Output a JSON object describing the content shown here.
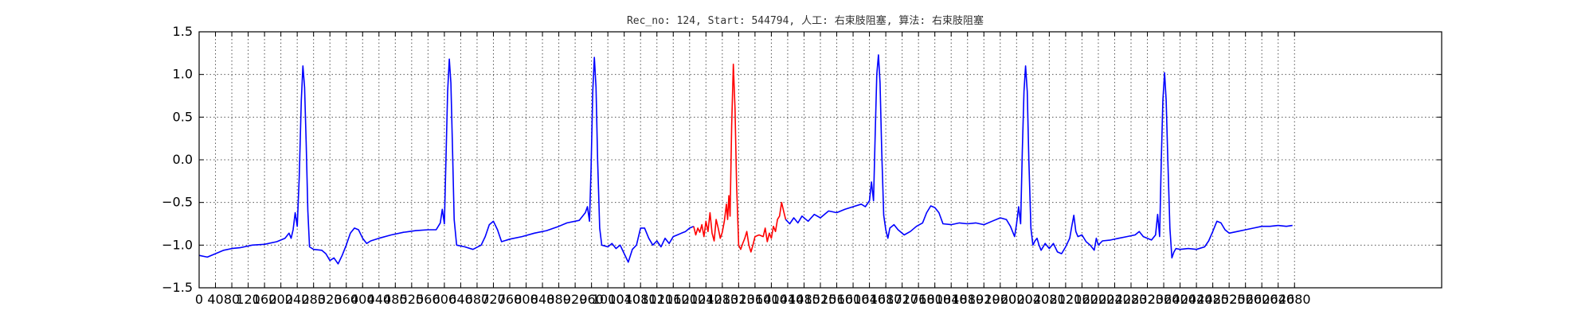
{
  "chart_data": {
    "type": "line",
    "title": "Rec_no: 124, Start: 544794, 人工: 右束肢阻塞, 算法: 右束肢阻塞",
    "xlabel": "",
    "ylabel": "",
    "xlim": [
      0,
      3040
    ],
    "ylim": [
      -1.5,
      1.5
    ],
    "grid": true,
    "y_ticks": [
      "1.5",
      "1.0",
      "0.5",
      "0.0",
      "−0.5",
      "−1.0",
      "−1.5"
    ],
    "y_tick_values": [
      1.5,
      1.0,
      0.5,
      0.0,
      -0.5,
      -1.0,
      -1.5
    ],
    "x_tick_step": 40,
    "x_tick_max": 2680,
    "series": [
      {
        "name": "ecg-blue-before",
        "color": "#0000ff",
        "points": [
          [
            0,
            -1.12
          ],
          [
            20,
            -1.14
          ],
          [
            40,
            -1.1
          ],
          [
            60,
            -1.06
          ],
          [
            80,
            -1.04
          ],
          [
            100,
            -1.03
          ],
          [
            130,
            -1.0
          ],
          [
            160,
            -0.99
          ],
          [
            190,
            -0.96
          ],
          [
            210,
            -0.92
          ],
          [
            220,
            -0.86
          ],
          [
            225,
            -0.92
          ],
          [
            230,
            -0.82
          ],
          [
            235,
            -0.62
          ],
          [
            240,
            -0.78
          ],
          [
            245,
            -0.2
          ],
          [
            250,
            0.7
          ],
          [
            254,
            1.1
          ],
          [
            258,
            0.85
          ],
          [
            262,
            0.2
          ],
          [
            266,
            -0.6
          ],
          [
            270,
            -1.02
          ],
          [
            280,
            -1.05
          ],
          [
            300,
            -1.06
          ],
          [
            310,
            -1.1
          ],
          [
            320,
            -1.18
          ],
          [
            330,
            -1.15
          ],
          [
            340,
            -1.22
          ],
          [
            350,
            -1.12
          ],
          [
            360,
            -1.0
          ],
          [
            370,
            -0.86
          ],
          [
            380,
            -0.8
          ],
          [
            390,
            -0.82
          ],
          [
            400,
            -0.92
          ],
          [
            410,
            -0.98
          ],
          [
            420,
            -0.95
          ],
          [
            440,
            -0.92
          ],
          [
            470,
            -0.88
          ],
          [
            500,
            -0.85
          ],
          [
            530,
            -0.83
          ],
          [
            560,
            -0.82
          ],
          [
            580,
            -0.82
          ],
          [
            590,
            -0.74
          ],
          [
            595,
            -0.58
          ],
          [
            600,
            -0.75
          ],
          [
            604,
            0.0
          ],
          [
            608,
            0.8
          ],
          [
            612,
            1.18
          ],
          [
            616,
            0.9
          ],
          [
            620,
            0.1
          ],
          [
            624,
            -0.7
          ],
          [
            630,
            -1.0
          ],
          [
            650,
            -1.02
          ],
          [
            670,
            -1.05
          ],
          [
            690,
            -1.0
          ],
          [
            700,
            -0.9
          ],
          [
            710,
            -0.76
          ],
          [
            720,
            -0.72
          ],
          [
            730,
            -0.82
          ],
          [
            740,
            -0.96
          ],
          [
            760,
            -0.93
          ],
          [
            790,
            -0.9
          ],
          [
            820,
            -0.86
          ],
          [
            850,
            -0.83
          ],
          [
            880,
            -0.78
          ],
          [
            900,
            -0.74
          ],
          [
            930,
            -0.71
          ],
          [
            945,
            -0.62
          ],
          [
            950,
            -0.55
          ],
          [
            955,
            -0.72
          ],
          [
            959,
            -0.1
          ],
          [
            963,
            0.8
          ],
          [
            967,
            1.2
          ],
          [
            971,
            0.85
          ],
          [
            975,
            0.0
          ],
          [
            980,
            -0.8
          ],
          [
            985,
            -1.0
          ],
          [
            1000,
            -1.02
          ],
          [
            1010,
            -0.98
          ],
          [
            1020,
            -1.04
          ],
          [
            1030,
            -1.0
          ],
          [
            1040,
            -1.1
          ],
          [
            1050,
            -1.2
          ],
          [
            1060,
            -1.05
          ],
          [
            1070,
            -1.0
          ],
          [
            1080,
            -0.8
          ],
          [
            1090,
            -0.8
          ],
          [
            1100,
            -0.92
          ],
          [
            1110,
            -1.0
          ],
          [
            1120,
            -0.95
          ],
          [
            1130,
            -1.02
          ],
          [
            1140,
            -0.92
          ],
          [
            1150,
            -0.98
          ],
          [
            1160,
            -0.9
          ],
          [
            1170,
            -0.88
          ],
          [
            1180,
            -0.86
          ],
          [
            1190,
            -0.84
          ],
          [
            1200,
            -0.8
          ],
          [
            1210,
            -0.78
          ]
        ]
      },
      {
        "name": "ecg-red-highlight",
        "color": "#ff0000",
        "points": [
          [
            1210,
            -0.78
          ],
          [
            1215,
            -0.88
          ],
          [
            1220,
            -0.8
          ],
          [
            1225,
            -0.85
          ],
          [
            1230,
            -0.76
          ],
          [
            1235,
            -0.9
          ],
          [
            1240,
            -0.72
          ],
          [
            1245,
            -0.84
          ],
          [
            1250,
            -0.62
          ],
          [
            1255,
            -0.86
          ],
          [
            1260,
            -0.95
          ],
          [
            1265,
            -0.7
          ],
          [
            1270,
            -0.8
          ],
          [
            1275,
            -0.92
          ],
          [
            1280,
            -0.85
          ],
          [
            1285,
            -0.72
          ],
          [
            1290,
            -0.52
          ],
          [
            1293,
            -0.7
          ],
          [
            1296,
            -0.42
          ],
          [
            1299,
            -0.66
          ],
          [
            1303,
            0.4
          ],
          [
            1307,
            1.12
          ],
          [
            1311,
            0.6
          ],
          [
            1315,
            -0.3
          ],
          [
            1320,
            -1.0
          ],
          [
            1325,
            -1.05
          ],
          [
            1330,
            -0.98
          ],
          [
            1335,
            -0.92
          ],
          [
            1340,
            -0.84
          ],
          [
            1345,
            -1.0
          ],
          [
            1350,
            -1.08
          ],
          [
            1355,
            -1.0
          ],
          [
            1360,
            -0.9
          ],
          [
            1370,
            -0.88
          ],
          [
            1380,
            -0.9
          ],
          [
            1385,
            -0.8
          ],
          [
            1390,
            -0.96
          ],
          [
            1395,
            -0.86
          ],
          [
            1400,
            -0.92
          ],
          [
            1405,
            -0.78
          ],
          [
            1410,
            -0.84
          ],
          [
            1415,
            -0.7
          ],
          [
            1420,
            -0.66
          ],
          [
            1425,
            -0.5
          ],
          [
            1430,
            -0.6
          ],
          [
            1435,
            -0.7
          ]
        ]
      },
      {
        "name": "ecg-blue-after",
        "color": "#0000ff",
        "points": [
          [
            1435,
            -0.7
          ],
          [
            1445,
            -0.75
          ],
          [
            1455,
            -0.68
          ],
          [
            1465,
            -0.74
          ],
          [
            1475,
            -0.66
          ],
          [
            1490,
            -0.72
          ],
          [
            1505,
            -0.64
          ],
          [
            1520,
            -0.68
          ],
          [
            1540,
            -0.6
          ],
          [
            1560,
            -0.62
          ],
          [
            1580,
            -0.58
          ],
          [
            1600,
            -0.55
          ],
          [
            1620,
            -0.52
          ],
          [
            1630,
            -0.55
          ],
          [
            1640,
            -0.48
          ],
          [
            1645,
            -0.26
          ],
          [
            1650,
            -0.48
          ],
          [
            1654,
            0.3
          ],
          [
            1658,
            1.0
          ],
          [
            1662,
            1.23
          ],
          [
            1666,
            0.9
          ],
          [
            1670,
            0.1
          ],
          [
            1675,
            -0.65
          ],
          [
            1680,
            -0.82
          ],
          [
            1685,
            -0.92
          ],
          [
            1690,
            -0.8
          ],
          [
            1700,
            -0.76
          ],
          [
            1710,
            -0.82
          ],
          [
            1725,
            -0.88
          ],
          [
            1740,
            -0.84
          ],
          [
            1755,
            -0.78
          ],
          [
            1770,
            -0.74
          ],
          [
            1780,
            -0.62
          ],
          [
            1790,
            -0.54
          ],
          [
            1800,
            -0.56
          ],
          [
            1810,
            -0.62
          ],
          [
            1820,
            -0.75
          ],
          [
            1840,
            -0.76
          ],
          [
            1860,
            -0.74
          ],
          [
            1880,
            -0.75
          ],
          [
            1900,
            -0.74
          ],
          [
            1920,
            -0.76
          ],
          [
            1940,
            -0.72
          ],
          [
            1960,
            -0.68
          ],
          [
            1975,
            -0.7
          ],
          [
            1985,
            -0.78
          ],
          [
            1995,
            -0.9
          ],
          [
            2000,
            -0.75
          ],
          [
            2005,
            -0.55
          ],
          [
            2010,
            -0.75
          ],
          [
            2014,
            0.1
          ],
          [
            2018,
            0.8
          ],
          [
            2022,
            1.1
          ],
          [
            2026,
            0.8
          ],
          [
            2030,
            0.0
          ],
          [
            2035,
            -0.8
          ],
          [
            2040,
            -1.0
          ],
          [
            2045,
            -0.95
          ],
          [
            2050,
            -0.92
          ],
          [
            2055,
            -1.0
          ],
          [
            2060,
            -1.06
          ],
          [
            2070,
            -0.98
          ],
          [
            2080,
            -1.04
          ],
          [
            2090,
            -0.98
          ],
          [
            2100,
            -1.08
          ],
          [
            2110,
            -1.1
          ],
          [
            2120,
            -1.02
          ],
          [
            2130,
            -0.92
          ],
          [
            2135,
            -0.78
          ],
          [
            2140,
            -0.65
          ],
          [
            2145,
            -0.84
          ],
          [
            2150,
            -0.9
          ],
          [
            2160,
            -0.88
          ],
          [
            2170,
            -0.96
          ],
          [
            2180,
            -1.0
          ],
          [
            2190,
            -1.06
          ],
          [
            2195,
            -0.92
          ],
          [
            2200,
            -1.0
          ],
          [
            2210,
            -0.95
          ],
          [
            2230,
            -0.94
          ],
          [
            2250,
            -0.92
          ],
          [
            2270,
            -0.9
          ],
          [
            2290,
            -0.88
          ],
          [
            2300,
            -0.84
          ],
          [
            2310,
            -0.9
          ],
          [
            2320,
            -0.92
          ],
          [
            2330,
            -0.94
          ],
          [
            2340,
            -0.88
          ],
          [
            2345,
            -0.64
          ],
          [
            2350,
            -0.9
          ],
          [
            2354,
            0.0
          ],
          [
            2358,
            0.7
          ],
          [
            2362,
            1.02
          ],
          [
            2366,
            0.7
          ],
          [
            2370,
            0.0
          ],
          [
            2375,
            -0.8
          ],
          [
            2380,
            -1.15
          ],
          [
            2385,
            -1.08
          ],
          [
            2390,
            -1.04
          ],
          [
            2400,
            -1.05
          ],
          [
            2420,
            -1.04
          ],
          [
            2440,
            -1.05
          ],
          [
            2460,
            -1.02
          ],
          [
            2470,
            -0.95
          ],
          [
            2480,
            -0.84
          ],
          [
            2490,
            -0.72
          ],
          [
            2500,
            -0.74
          ],
          [
            2510,
            -0.82
          ],
          [
            2520,
            -0.86
          ],
          [
            2540,
            -0.84
          ],
          [
            2560,
            -0.82
          ],
          [
            2580,
            -0.8
          ],
          [
            2600,
            -0.78
          ],
          [
            2620,
            -0.78
          ],
          [
            2640,
            -0.77
          ],
          [
            2660,
            -0.78
          ],
          [
            2675,
            -0.77
          ]
        ]
      }
    ]
  }
}
